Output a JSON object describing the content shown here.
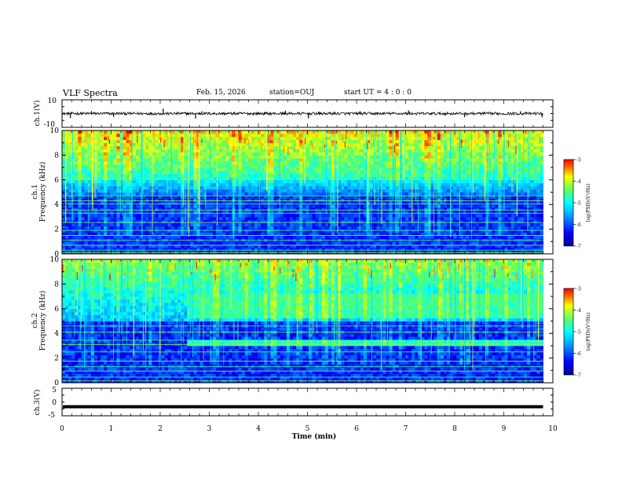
{
  "header": {
    "title": "VLF Spectra",
    "date": "Feb. 15, 2026",
    "station": "station=OUJ",
    "start_ut": "start UT =  4 : 0  : 0"
  },
  "chart_data": [
    {
      "id": "ch1-waveform",
      "type": "line",
      "ylabel": "ch.1(V)",
      "ylim": [
        -10,
        10
      ],
      "ytick_labels": [
        "10",
        "-10"
      ],
      "xlim": [
        0,
        10
      ],
      "baseline": 0,
      "noise_amplitude": 1,
      "spikes": [
        {
          "t": 0.17,
          "v": -3.2
        },
        {
          "t": 0.6,
          "v": 1.8
        },
        {
          "t": 1.05,
          "v": -2.4
        },
        {
          "t": 2.06,
          "v": 3.6
        },
        {
          "t": 2.72,
          "v": -3.6
        },
        {
          "t": 2.85,
          "v": 1.6
        },
        {
          "t": 4.55,
          "v": 2.2
        },
        {
          "t": 5.02,
          "v": -3.5
        },
        {
          "t": 6.07,
          "v": 1.7
        },
        {
          "t": 7.06,
          "v": 2.3
        },
        {
          "t": 8.2,
          "v": -2.6
        },
        {
          "t": 9.34,
          "v": 1.7
        },
        {
          "t": 9.78,
          "v": -2.7
        }
      ]
    },
    {
      "id": "ch1-spectrogram",
      "type": "heatmap",
      "ylabel": "ch.1",
      "ylabel2": "Frequency (kHz)",
      "ylim": [
        0,
        10
      ],
      "yticks": [
        0,
        2,
        4,
        6,
        8,
        10
      ],
      "xlim": [
        0,
        10
      ],
      "data_end_min": 9.8,
      "lines_khz": [
        0.1,
        0.3,
        0.7,
        1.1,
        1.5,
        1.9,
        2.55,
        3.3,
        3.55,
        4.05,
        4.3,
        4.7
      ],
      "colorbar": {
        "label": "log(PSD)(V²/Hz)",
        "range": [
          -7,
          -3
        ],
        "ticks": [
          "-3",
          "-4",
          "-5",
          "-6",
          "-7"
        ]
      }
    },
    {
      "id": "ch2-spectrogram",
      "type": "heatmap",
      "ylabel": "ch.2",
      "ylabel2": "Frequency (kHz)",
      "ylim": [
        0,
        10
      ],
      "yticks": [
        0,
        2,
        4,
        6,
        8,
        10
      ],
      "xlim": [
        0,
        10
      ],
      "data_end_min": 9.8,
      "event_start_min": 2.55,
      "event_bands_khz": [
        [
          2.9,
          3.6
        ],
        [
          5.3,
          7.3
        ]
      ],
      "lines_khz": [
        0.15,
        0.45,
        0.95,
        1.3,
        1.75,
        2.5,
        3.1,
        3.45,
        4.1,
        4.6
      ],
      "colorbar": {
        "label": "log(PSD)(V²/Hz)",
        "range": [
          -7,
          -3
        ],
        "ticks": [
          "-3",
          "-4",
          "-5",
          "-6",
          "-7"
        ]
      }
    },
    {
      "id": "ch3-waveform",
      "type": "line",
      "ylabel": "ch.3(V)",
      "ylim": [
        -5,
        5
      ],
      "ytick_labels": [
        "5",
        "0",
        "-5"
      ],
      "xlim": [
        0,
        10
      ],
      "level_v": -1.7
    }
  ],
  "xaxis": {
    "label": "Time (min)",
    "ticks": [
      "0",
      "1",
      "2",
      "3",
      "4",
      "5",
      "6",
      "7",
      "8",
      "9",
      "10"
    ]
  }
}
